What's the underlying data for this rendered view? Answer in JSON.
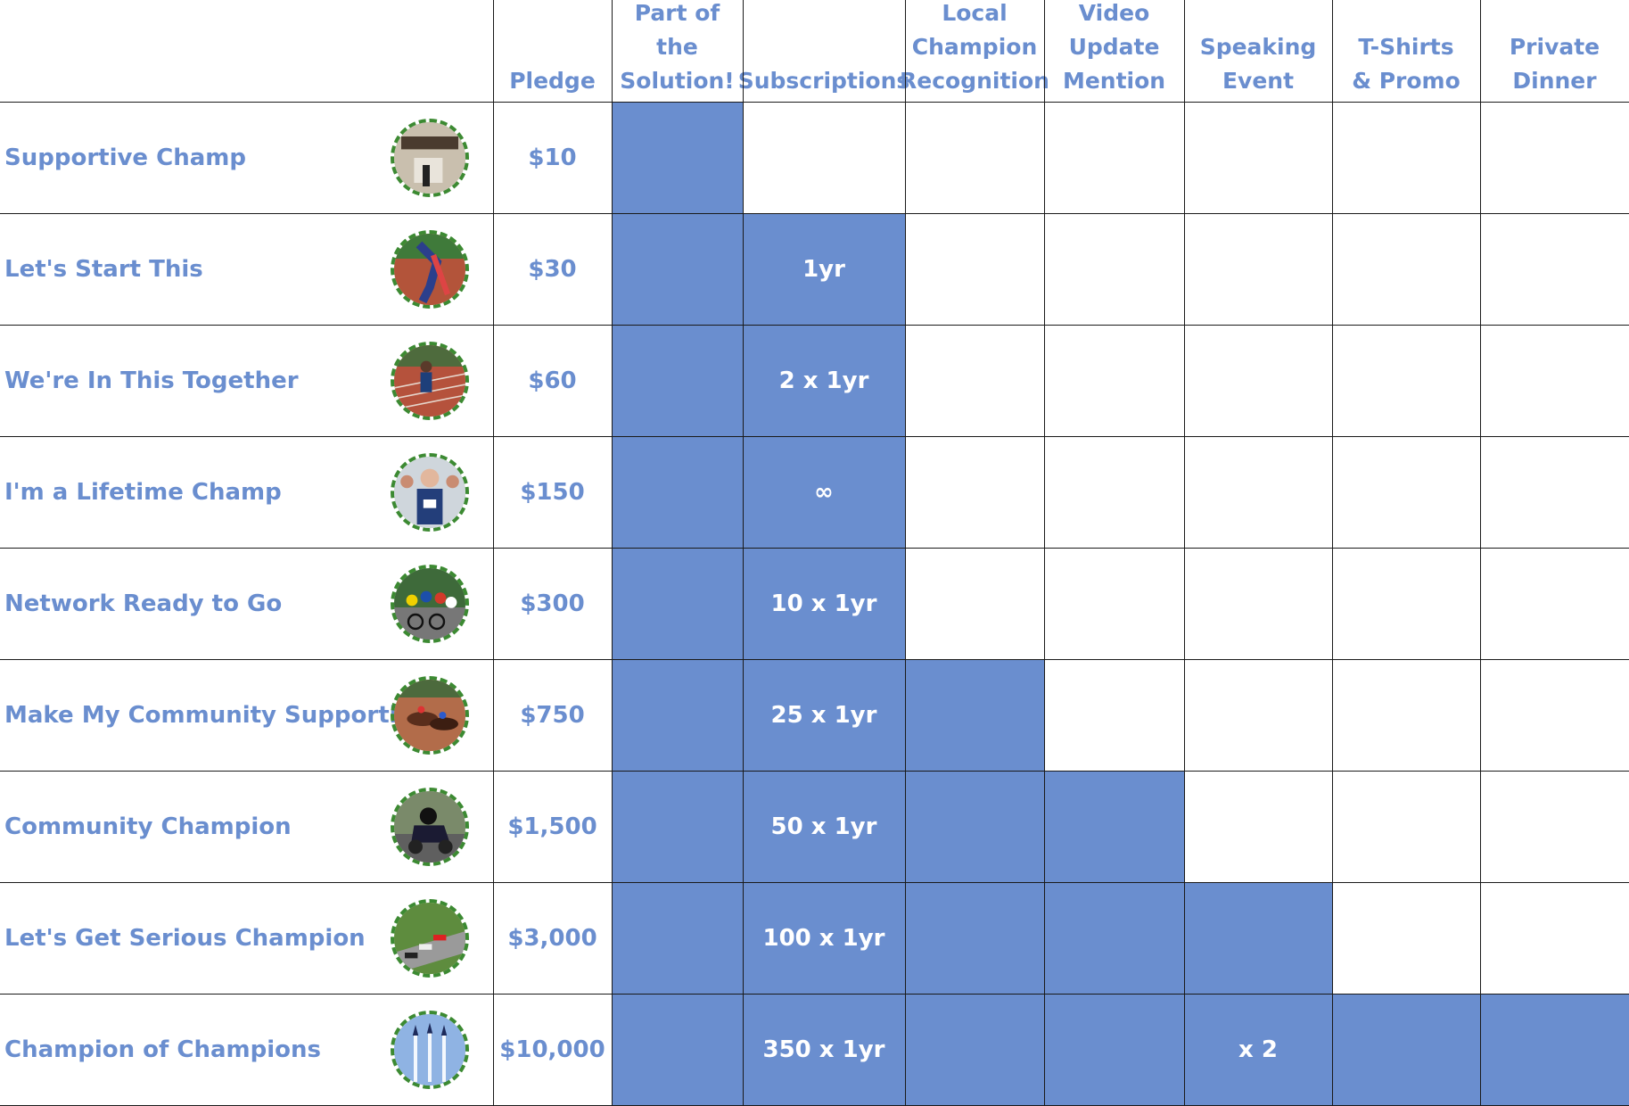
{
  "columns": [
    "Pledge",
    "Part of the\nSolution!",
    "Subscriptions",
    "Local\nChampion\nRecognition",
    "Video\nUpdate\nMention",
    "Speaking\nEvent",
    "T-Shirts\n& Promo",
    "Private\nDinner"
  ],
  "tiers": [
    {
      "name": "Supportive Champ",
      "pledge": "$10",
      "image": "protest-crowd-icon",
      "subscriptions": "",
      "features": [
        true,
        false,
        false,
        false,
        false,
        false,
        false
      ],
      "speaking_event": ""
    },
    {
      "name": "Let's Start This",
      "pledge": "$30",
      "image": "hurdler-icon",
      "subscriptions": "1yr",
      "features": [
        true,
        true,
        false,
        false,
        false,
        false,
        false
      ],
      "speaking_event": ""
    },
    {
      "name": "We're In This Together",
      "pledge": "$60",
      "image": "sprinter-icon",
      "subscriptions": "2 x 1yr",
      "features": [
        true,
        true,
        false,
        false,
        false,
        false,
        false
      ],
      "speaking_event": ""
    },
    {
      "name": "I'm a Lifetime Champ",
      "pledge": "$150",
      "image": "marathon-runner-icon",
      "subscriptions": "∞",
      "features": [
        true,
        true,
        false,
        false,
        false,
        false,
        false
      ],
      "speaking_event": ""
    },
    {
      "name": "Network Ready to Go",
      "pledge": "$300",
      "image": "cycling-peloton-icon",
      "subscriptions": "10 x 1yr",
      "features": [
        true,
        true,
        false,
        false,
        false,
        false,
        false
      ],
      "speaking_event": ""
    },
    {
      "name": "Make My Community Supportive",
      "pledge": "$750",
      "image": "horse-race-icon",
      "subscriptions": "25 x 1yr",
      "features": [
        true,
        true,
        true,
        false,
        false,
        false,
        false
      ],
      "speaking_event": ""
    },
    {
      "name": "Community Champion",
      "pledge": "$1,500",
      "image": "motorcycle-racer-icon",
      "subscriptions": "50 x 1yr",
      "features": [
        true,
        true,
        true,
        true,
        false,
        false,
        false
      ],
      "speaking_event": ""
    },
    {
      "name": "Let's Get Serious Champion",
      "pledge": "$3,000",
      "image": "race-cars-icon",
      "subscriptions": "100 x 1yr",
      "features": [
        true,
        true,
        true,
        true,
        true,
        false,
        false
      ],
      "speaking_event": ""
    },
    {
      "name": "Champion of Champions",
      "pledge": "$10,000",
      "image": "jet-formation-icon",
      "subscriptions": "350 x 1yr",
      "features": [
        true,
        true,
        true,
        true,
        true,
        true,
        true
      ],
      "speaking_event": "x 2"
    }
  ],
  "colors": {
    "accent": "#6a8ecf",
    "grid": "#1a1a1a",
    "background": "#ffffff"
  }
}
